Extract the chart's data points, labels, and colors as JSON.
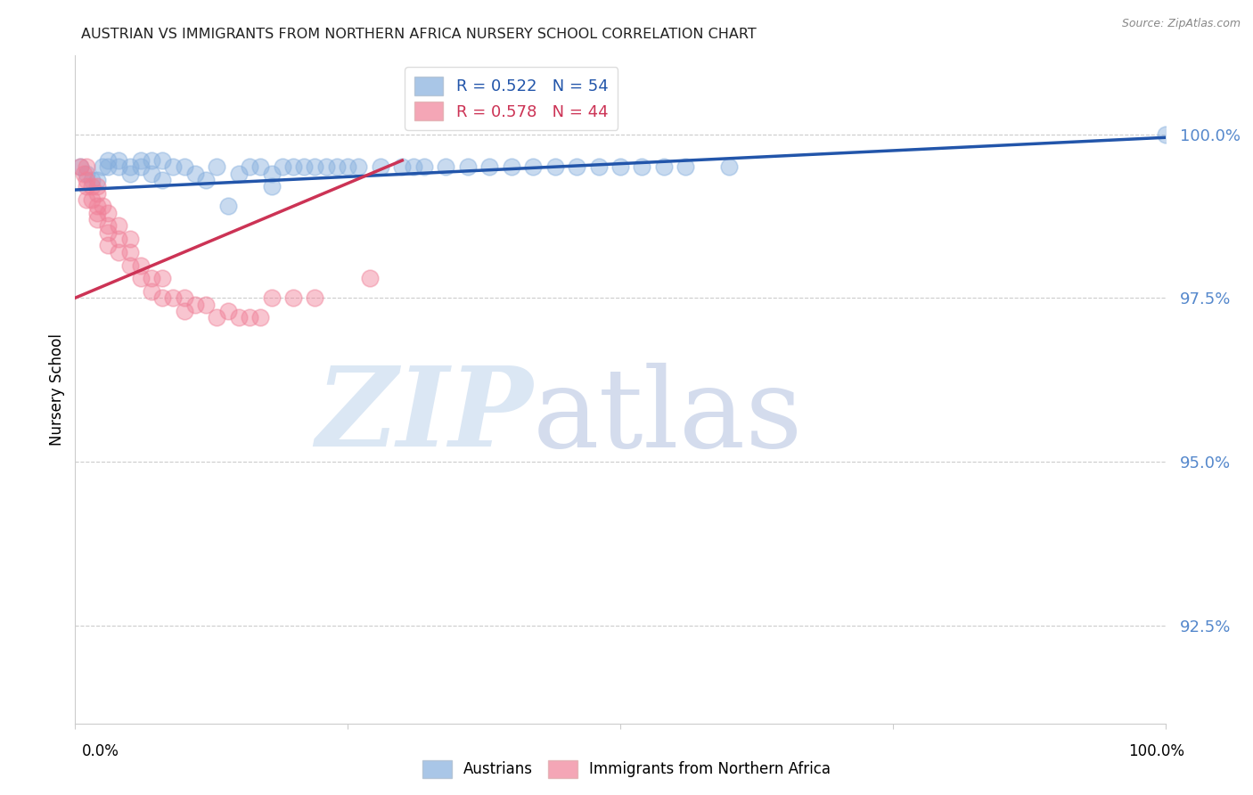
{
  "title": "AUSTRIAN VS IMMIGRANTS FROM NORTHERN AFRICA NURSERY SCHOOL CORRELATION CHART",
  "source": "Source: ZipAtlas.com",
  "ylabel": "Nursery School",
  "watermark_zip": "ZIP",
  "watermark_atlas": "atlas",
  "blue_R": 0.522,
  "blue_N": 54,
  "pink_R": 0.578,
  "pink_N": 44,
  "blue_color": "#85AEDD",
  "pink_color": "#F08098",
  "blue_line_color": "#2255AA",
  "pink_line_color": "#CC3355",
  "grid_color": "#CCCCCC",
  "ytick_color": "#5588CC",
  "yticks": [
    92.5,
    95.0,
    97.5,
    100.0
  ],
  "ytick_labels": [
    "92.5%",
    "95.0%",
    "97.5%",
    "100.0%"
  ],
  "xlim": [
    0.0,
    1.0
  ],
  "ylim": [
    91.0,
    101.2
  ],
  "blue_x": [
    0.005,
    0.01,
    0.015,
    0.02,
    0.025,
    0.03,
    0.03,
    0.04,
    0.04,
    0.05,
    0.05,
    0.06,
    0.06,
    0.07,
    0.07,
    0.08,
    0.08,
    0.09,
    0.1,
    0.11,
    0.12,
    0.13,
    0.14,
    0.15,
    0.16,
    0.17,
    0.18,
    0.18,
    0.19,
    0.2,
    0.21,
    0.22,
    0.23,
    0.24,
    0.25,
    0.26,
    0.28,
    0.3,
    0.31,
    0.32,
    0.34,
    0.36,
    0.38,
    0.4,
    0.42,
    0.44,
    0.46,
    0.48,
    0.5,
    0.52,
    0.54,
    0.56,
    0.6,
    1.0
  ],
  "blue_y": [
    99.5,
    99.4,
    99.3,
    99.3,
    99.5,
    99.5,
    99.6,
    99.6,
    99.5,
    99.5,
    99.4,
    99.6,
    99.5,
    99.6,
    99.4,
    99.6,
    99.3,
    99.5,
    99.5,
    99.4,
    99.3,
    99.5,
    98.9,
    99.4,
    99.5,
    99.5,
    99.4,
    99.2,
    99.5,
    99.5,
    99.5,
    99.5,
    99.5,
    99.5,
    99.5,
    99.5,
    99.5,
    99.5,
    99.5,
    99.5,
    99.5,
    99.5,
    99.5,
    99.5,
    99.5,
    99.5,
    99.5,
    99.5,
    99.5,
    99.5,
    99.5,
    99.5,
    99.5,
    100.0
  ],
  "pink_x": [
    0.005,
    0.008,
    0.01,
    0.01,
    0.01,
    0.01,
    0.015,
    0.015,
    0.02,
    0.02,
    0.02,
    0.02,
    0.02,
    0.025,
    0.03,
    0.03,
    0.03,
    0.03,
    0.04,
    0.04,
    0.04,
    0.05,
    0.05,
    0.05,
    0.06,
    0.06,
    0.07,
    0.07,
    0.08,
    0.08,
    0.09,
    0.1,
    0.1,
    0.11,
    0.12,
    0.13,
    0.14,
    0.15,
    0.16,
    0.17,
    0.18,
    0.2,
    0.22,
    0.27
  ],
  "pink_y": [
    99.5,
    99.4,
    99.5,
    99.3,
    99.2,
    99.0,
    99.2,
    99.0,
    99.2,
    99.1,
    98.9,
    98.8,
    98.7,
    98.9,
    98.8,
    98.6,
    98.5,
    98.3,
    98.6,
    98.4,
    98.2,
    98.4,
    98.2,
    98.0,
    98.0,
    97.8,
    97.8,
    97.6,
    97.8,
    97.5,
    97.5,
    97.5,
    97.3,
    97.4,
    97.4,
    97.2,
    97.3,
    97.2,
    97.2,
    97.2,
    97.5,
    97.5,
    97.5,
    97.8
  ]
}
